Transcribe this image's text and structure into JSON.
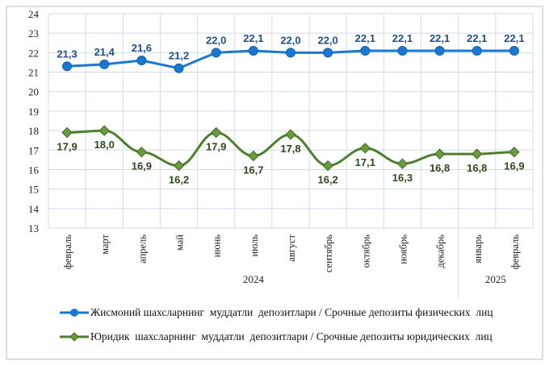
{
  "chart_data": {
    "type": "line",
    "categories": [
      "февраль",
      "март",
      "апрель",
      "май",
      "июнь",
      "июль",
      "август",
      "сентябрь",
      "октябрь",
      "ноябрь",
      "декабрь",
      "январь",
      "февраль"
    ],
    "year_groups": [
      {
        "label": "2024",
        "count": 11
      },
      {
        "label": "2025",
        "count": 2
      }
    ],
    "ylim": [
      13,
      24
    ],
    "yticks": [
      13,
      14,
      15,
      16,
      17,
      18,
      19,
      20,
      21,
      22,
      23,
      24
    ],
    "grid": true,
    "legend_position": "bottom",
    "series": [
      {
        "name": "Жисмоний шахсларнинг  муддатли  депозитлари / Срочные депозиты физических  лиц",
        "color": "#1a78d2",
        "marker": "circle",
        "values": [
          21.3,
          21.4,
          21.6,
          21.2,
          22.0,
          22.1,
          22.0,
          22.0,
          22.1,
          22.1,
          22.1,
          22.1,
          22.1
        ],
        "labels": [
          "21,3",
          "21,4",
          "21,6",
          "21,2",
          "22,0",
          "22,1",
          "22,0",
          "22,0",
          "22,1",
          "22,1",
          "22,1",
          "22,1",
          "22,1"
        ]
      },
      {
        "name": "Юридик  шахсларнинг  муддатли  депозитлари / Срочные депозиты юридических  лиц",
        "color": "#4e7f2e",
        "marker": "diamond",
        "values": [
          17.9,
          18.0,
          16.9,
          16.2,
          17.9,
          16.7,
          17.8,
          16.2,
          17.1,
          16.3,
          16.8,
          16.8,
          16.9
        ],
        "labels": [
          "17,9",
          "18,0",
          "16,9",
          "16,2",
          "17,9",
          "16,7",
          "17,8",
          "16,2",
          "17,1",
          "16,3",
          "16,8",
          "16,8",
          "16,9"
        ]
      }
    ]
  }
}
